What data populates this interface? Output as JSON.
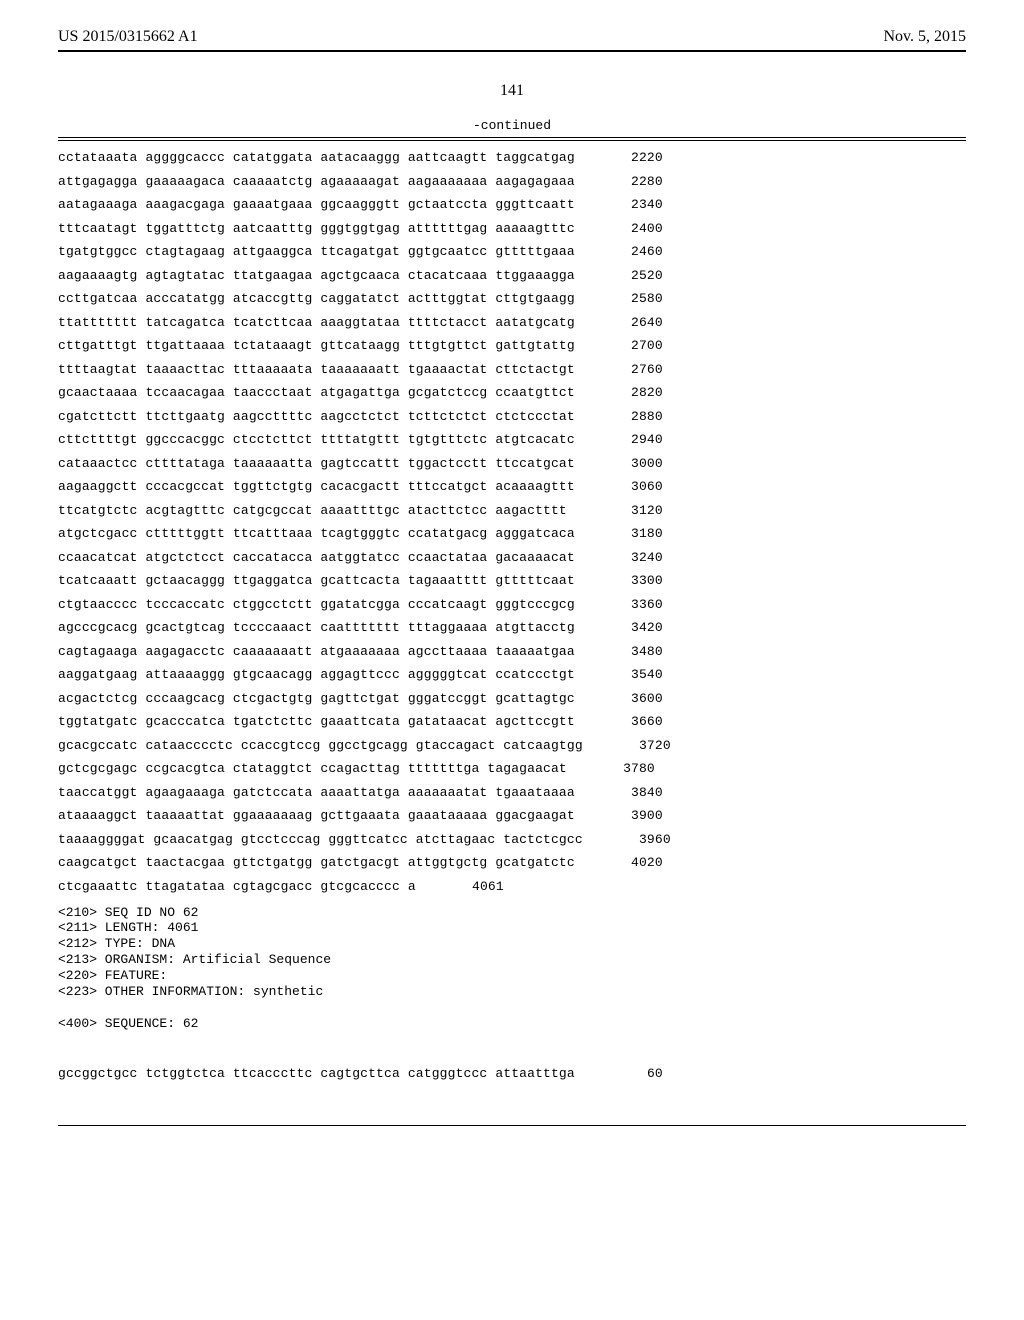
{
  "header": {
    "publication_number": "US 2015/0315662 A1",
    "publication_date": "Nov. 5, 2015"
  },
  "page_number": "141",
  "continued_label": "-continued",
  "sequence_lines": [
    {
      "seq": "cctataaata aggggcaccc catatggata aatacaaggg aattcaagtt taggcatgag",
      "pos": "2220"
    },
    {
      "seq": "attgagagga gaaaaagaca caaaaatctg agaaaaagat aagaaaaaaa aagagagaaa",
      "pos": "2280"
    },
    {
      "seq": "aatagaaaga aaagacgaga gaaaatgaaa ggcaagggtt gctaatccta gggttcaatt",
      "pos": "2340"
    },
    {
      "seq": "tttcaatagt tggatttctg aatcaatttg gggtggtgag attttttgag aaaaagtttc",
      "pos": "2400"
    },
    {
      "seq": "tgatgtggcc ctagtagaag attgaaggca ttcagatgat ggtgcaatcc gtttttgaaa",
      "pos": "2460"
    },
    {
      "seq": "aagaaaagtg agtagtatac ttatgaagaa agctgcaaca ctacatcaaa ttggaaagga",
      "pos": "2520"
    },
    {
      "seq": "ccttgatcaa acccatatgg atcaccgttg caggatatct actttggtat cttgtgaagg",
      "pos": "2580"
    },
    {
      "seq": "ttattttttt tatcagatca tcatcttcaa aaaggtataa ttttctacct aatatgcatg",
      "pos": "2640"
    },
    {
      "seq": "cttgatttgt ttgattaaaa tctataaagt gttcataagg tttgtgttct gattgtattg",
      "pos": "2700"
    },
    {
      "seq": "ttttaagtat taaaacttac tttaaaaata taaaaaaatt tgaaaactat cttctactgt",
      "pos": "2760"
    },
    {
      "seq": "gcaactaaaa tccaacagaa taaccctaat atgagattga gcgatctccg ccaatgttct",
      "pos": "2820"
    },
    {
      "seq": "cgatcttctt ttcttgaatg aagccttttc aagcctctct tcttctctct ctctccctat",
      "pos": "2880"
    },
    {
      "seq": "cttcttttgt ggcccacggc ctcctcttct ttttatgttt tgtgtttctc atgtcacatc",
      "pos": "2940"
    },
    {
      "seq": "cataaactcc cttttataga taaaaaatta gagtccattt tggactcctt ttccatgcat",
      "pos": "3000"
    },
    {
      "seq": "aagaaggctt cccacgccat tggttctgtg cacacgactt tttccatgct acaaaagttt",
      "pos": "3060"
    },
    {
      "seq": "ttcatgtctc acgtagtttc catgcgccat aaaattttgc atacttctcc aagactttt ",
      "pos": "3120"
    },
    {
      "seq": "atgctcgacc ctttttggtt ttcatttaaa tcagtgggtc ccatatgacg agggatcaca",
      "pos": "3180"
    },
    {
      "seq": "ccaacatcat atgctctcct caccatacca aatggtatcc ccaactataa gacaaaacat",
      "pos": "3240"
    },
    {
      "seq": "tcatcaaatt gctaacaggg ttgaggatca gcattcacta tagaaatttt gtttttcaat",
      "pos": "3300"
    },
    {
      "seq": "ctgtaacccc tcccaccatc ctggcctctt ggatatcgga cccatcaagt gggtcccgcg",
      "pos": "3360"
    },
    {
      "seq": "agcccgcacg gcactgtcag tccccaaact caattttttt tttaggaaaa atgttacctg",
      "pos": "3420"
    },
    {
      "seq": "cagtagaaga aagagacctc caaaaaaatt atgaaaaaaa agccttaaaa taaaaatgaa",
      "pos": "3480"
    },
    {
      "seq": "aaggatgaag attaaaaggg gtgcaacagg aggagttccc agggggtcat ccatccctgt",
      "pos": "3540"
    },
    {
      "seq": "acgactctcg cccaagcacg ctcgactgtg gagttctgat gggatccggt gcattagtgc",
      "pos": "3600"
    },
    {
      "seq": "tggtatgatc gcacccatca tgatctcttc gaaattcata gatataacat agcttccgtt",
      "pos": "3660"
    },
    {
      "seq": "gcacgccatc cataacccctc ccaccgtccg ggcctgcagg gtaccagact catcaagtgg",
      "pos": "3720"
    },
    {
      "seq": "gctcgcgagc ccgcacgtca ctataggtct ccagacttag tttttttga tagagaacat",
      "pos": "3780"
    },
    {
      "seq": "taaccatggt agaagaaaga gatctccata aaaattatga aaaaaaatat tgaaataaaa",
      "pos": "3840"
    },
    {
      "seq": "ataaaaggct taaaaattat ggaaaaaaag gcttgaaata gaaataaaaa ggacgaagat",
      "pos": "3900"
    },
    {
      "seq": "taaaaggggat gcaacatgag gtcctcccag gggttcatcc atcttagaac tactctcgcc",
      "pos": "3960"
    },
    {
      "seq": "caagcatgct taactacgaa gttctgatgg gatctgacgt attggtgctg gcatgatctc",
      "pos": "4020"
    },
    {
      "seq": "ctcgaaattc ttagatataa cgtagcgacc gtcgcacccc a",
      "pos": "4061"
    }
  ],
  "meta_block": "<210> SEQ ID NO 62\n<211> LENGTH: 4061\n<212> TYPE: DNA\n<213> ORGANISM: Artificial Sequence\n<220> FEATURE:\n<223> OTHER INFORMATION: synthetic\n\n<400> SEQUENCE: 62",
  "tail_line": {
    "seq": "gccggctgcc tctggtctca ttcacccttc cagtgcttca catgggtccc attaatttga",
    "pos": "60"
  }
}
